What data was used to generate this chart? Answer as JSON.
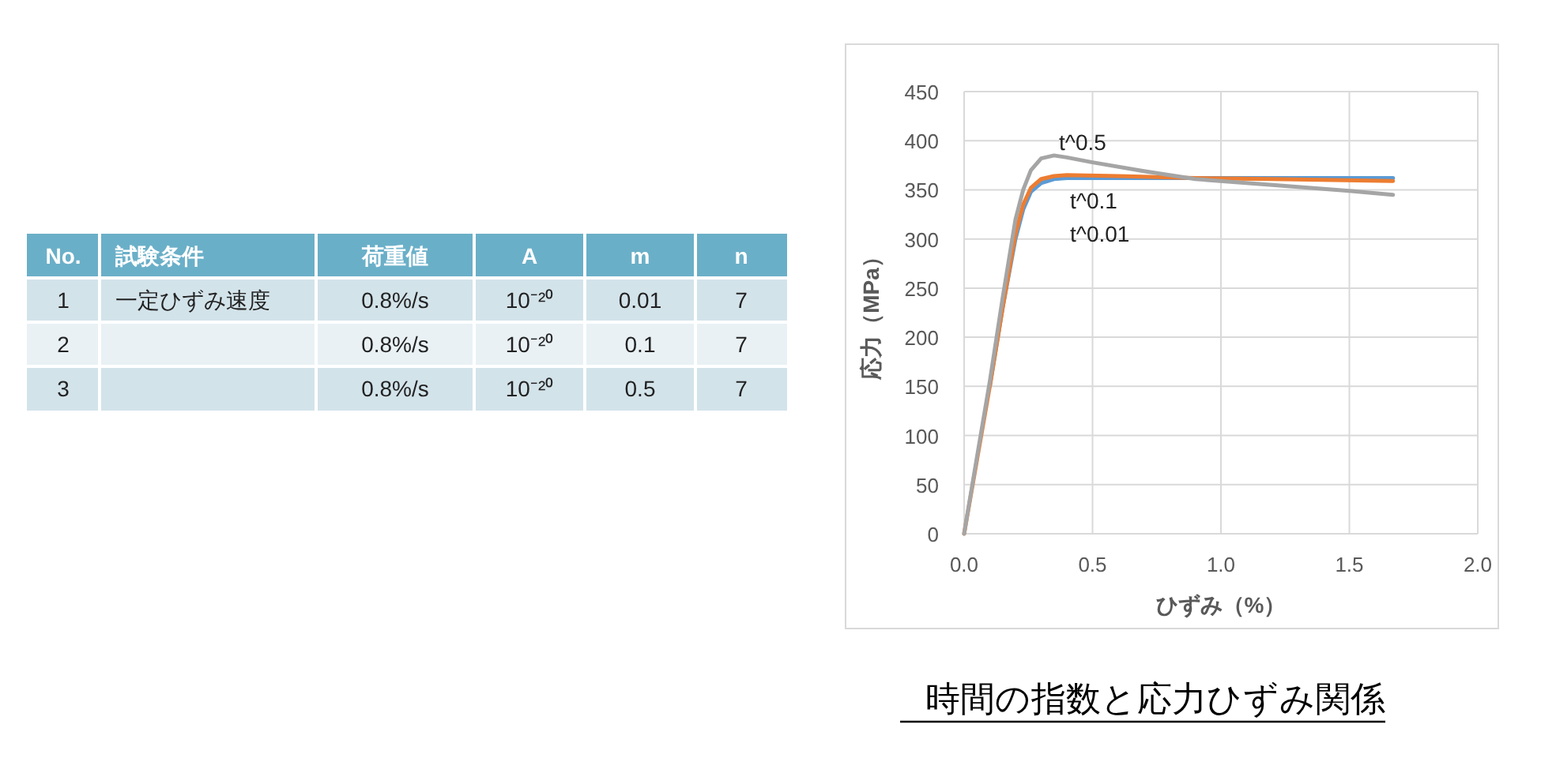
{
  "chart_data": [
    {
      "type": "other",
      "categories": [
        "No.",
        "試験条件",
        "荷重値",
        "A",
        "m",
        "n"
      ],
      "cell_labels": [
        [
          "1",
          "一定ひずみ速度",
          "0.8%/s",
          "10⁻²⁰",
          "0.01",
          "7"
        ],
        [
          "2",
          null,
          "0.8%/s",
          "10⁻²⁰",
          "0.1",
          "7"
        ],
        [
          "3",
          null,
          "0.8%/s",
          "10⁻²⁰",
          "0.5",
          "7"
        ]
      ]
    },
    {
      "type": "line",
      "title": "時間の指数と応力ひずみ関係",
      "xlabel": "ひずみ（%）",
      "ylabel": "応力（MPa）",
      "xlim": [
        0,
        2
      ],
      "xticks": [
        {
          "value": 0,
          "label": "0.0"
        },
        {
          "value": 0.5,
          "label": "0.5"
        },
        {
          "value": 1,
          "label": "1.0"
        },
        {
          "value": 1.5,
          "label": "1.5"
        },
        {
          "value": 2,
          "label": "2.0"
        }
      ],
      "ylim": [
        0,
        450
      ],
      "yticks": [
        0,
        50,
        100,
        150,
        200,
        250,
        300,
        350,
        400,
        450
      ],
      "grid": true,
      "legend": false,
      "marker": "none",
      "line_style": "solid",
      "series": [
        {
          "name": "t^0.01",
          "color": "#5b9bd5",
          "x": [
            0.1,
            0.15,
            0.2,
            0.23,
            0.26,
            0.3,
            0.35,
            0.4,
            0.6,
            1.0,
            1.4,
            1.67
          ],
          "values": [
            150,
            230,
            300,
            330,
            348,
            357,
            361,
            362,
            362,
            362,
            362,
            362
          ]
        },
        {
          "name": "t^0.1",
          "color": "#ed7d31",
          "x": [
            0,
            0.05,
            0.1,
            0.15,
            0.2,
            0.23,
            0.26,
            0.3,
            0.35,
            0.4,
            0.6,
            0.9,
            1.2,
            1.67
          ],
          "values": [
            0,
            75,
            150,
            230,
            305,
            335,
            352,
            361,
            364,
            365,
            364,
            362,
            361,
            359
          ]
        },
        {
          "name": "t^0.5",
          "color": "#a5a5a5",
          "x": [
            0,
            0.05,
            0.1,
            0.15,
            0.2,
            0.23,
            0.26,
            0.3,
            0.35,
            0.4,
            0.5,
            0.7,
            0.9,
            1.2,
            1.5,
            1.67
          ],
          "values": [
            0,
            78,
            155,
            240,
            320,
            350,
            370,
            382,
            385,
            383,
            378,
            369,
            361,
            355,
            349,
            345
          ]
        }
      ]
    }
  ]
}
